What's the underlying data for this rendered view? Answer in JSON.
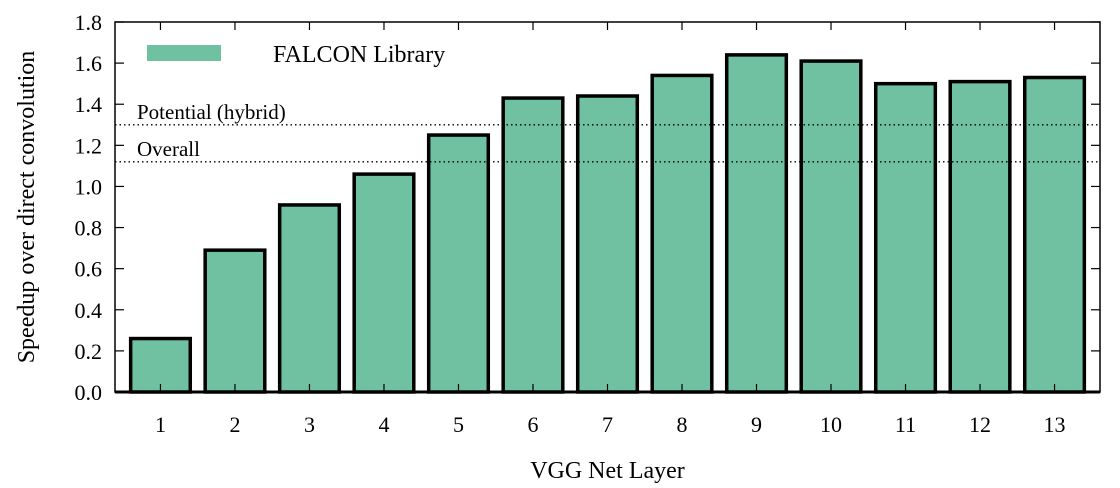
{
  "chart_data": {
    "type": "bar",
    "xlabel": "VGG Net Layer",
    "ylabel": "Speedup over direct convolution",
    "ylim": [
      0,
      1.8
    ],
    "yticks": [
      "0.0",
      "0.2",
      "0.4",
      "0.6",
      "0.8",
      "1.0",
      "1.2",
      "1.4",
      "1.6",
      "1.8"
    ],
    "categories": [
      "1",
      "2",
      "3",
      "4",
      "5",
      "6",
      "7",
      "8",
      "9",
      "10",
      "11",
      "12",
      "13"
    ],
    "series": [
      {
        "name": "FALCON Library",
        "color": "#6fc1a2",
        "values": [
          0.26,
          0.69,
          0.91,
          1.06,
          1.25,
          1.43,
          1.44,
          1.54,
          1.64,
          1.61,
          1.5,
          1.51,
          1.53
        ]
      }
    ],
    "reference_lines": [
      {
        "label": "Potential (hybrid)",
        "value": 1.3
      },
      {
        "label": "Overall",
        "value": 1.12
      }
    ],
    "legend_position": "top-left",
    "grid": false
  }
}
